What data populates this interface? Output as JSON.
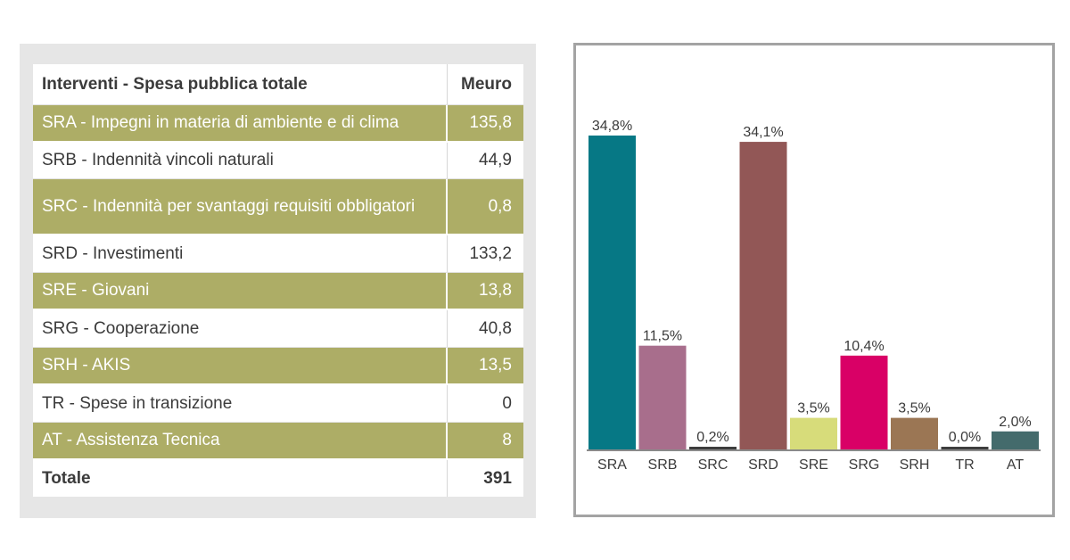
{
  "table": {
    "header": {
      "label": "Interventi - Spesa pubblica totale",
      "unit": "Meuro"
    },
    "rows": [
      {
        "label": "SRA - Impegni in materia di ambiente e di clima",
        "value": "135,8"
      },
      {
        "label": "SRB - Indennità vincoli naturali",
        "value": "44,9"
      },
      {
        "label": "SRC - Indennità per svantaggi requisiti obbligatori",
        "value": "0,8"
      },
      {
        "label": "SRD - Investimenti",
        "value": "133,2"
      },
      {
        "label": "SRE - Giovani",
        "value": "13,8"
      },
      {
        "label": "SRG - Cooperazione",
        "value": "40,8"
      },
      {
        "label": "SRH - AKIS",
        "value": "13,5"
      },
      {
        "label": "TR - Spese in transizione",
        "value": "0"
      },
      {
        "label": "AT - Assistenza Tecnica",
        "value": "8"
      }
    ],
    "total": {
      "label": "Totale",
      "value": "391"
    },
    "highlight_color": "#adad66"
  },
  "chart_data": {
    "type": "bar",
    "categories": [
      "SRA",
      "SRB",
      "SRC",
      "SRD",
      "SRE",
      "SRG",
      "SRH",
      "TR",
      "AT"
    ],
    "values": [
      34.8,
      11.5,
      0.2,
      34.1,
      3.5,
      10.4,
      3.5,
      0.0,
      2.0
    ],
    "labels": [
      "34,8%",
      "11,5%",
      "0,2%",
      "34,1%",
      "3,5%",
      "10,4%",
      "3,5%",
      "0,0%",
      "2,0%"
    ],
    "colors": [
      "#067885",
      "#a86e8c",
      "#3d3d3d",
      "#925756",
      "#d7dc7a",
      "#d90066",
      "#9b7654",
      "#3d3d3d",
      "#446b6c"
    ],
    "ylim": [
      0,
      34.8
    ],
    "grid": false,
    "legend": "none"
  }
}
